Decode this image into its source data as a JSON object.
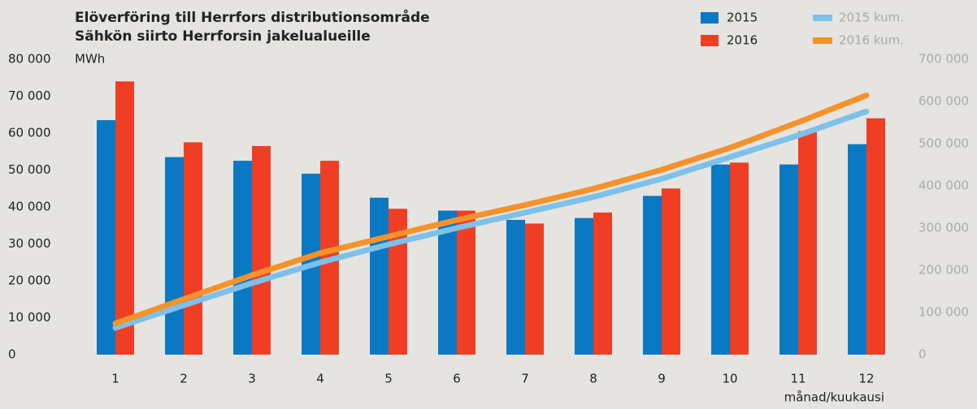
{
  "chart_data": {
    "type": "bar",
    "title": "Elöverföring till Herrfors distributionsområde",
    "subtitle": "Sähkön siirto Herrforsin jakelualueille",
    "y_label": "MWh",
    "x_label": "månad/kuukausi",
    "categories": [
      "1",
      "2",
      "3",
      "4",
      "5",
      "6",
      "7",
      "8",
      "9",
      "10",
      "11",
      "12"
    ],
    "series": [
      {
        "name": "2015",
        "color": "#0b78c3",
        "values": [
          63500,
          53500,
          52500,
          49000,
          42500,
          39000,
          36500,
          37000,
          43000,
          51500,
          51500,
          57000
        ]
      },
      {
        "name": "2016",
        "color": "#ef3e24",
        "values": [
          74000,
          57500,
          56500,
          52500,
          39500,
          39000,
          35500,
          38500,
          45000,
          52000,
          60500,
          64000
        ]
      },
      {
        "name": "2015 kum.",
        "color": "#7dc1ea",
        "axis": "y2",
        "type": "line",
        "values": [
          63500,
          117000,
          169500,
          218500,
          261000,
          300000,
          336500,
          373500,
          416500,
          468000,
          519500,
          576500
        ]
      },
      {
        "name": "2016 kum.",
        "color": "#f5922b",
        "axis": "y2",
        "type": "line",
        "values": [
          74000,
          131500,
          188000,
          240500,
          280000,
          319000,
          354500,
          393000,
          438000,
          490000,
          550500,
          614500
        ]
      }
    ],
    "ylim": [
      0,
      80000
    ],
    "yticks": [
      {
        "value": 0,
        "label": "0"
      },
      {
        "value": 10000,
        "label": "10 000"
      },
      {
        "value": 20000,
        "label": "20 000"
      },
      {
        "value": 30000,
        "label": "30 000"
      },
      {
        "value": 40000,
        "label": "40 000"
      },
      {
        "value": 50000,
        "label": "50 000"
      },
      {
        "value": 60000,
        "label": "60 000"
      },
      {
        "value": 70000,
        "label": "70 000"
      },
      {
        "value": 80000,
        "label": "80 000"
      }
    ],
    "y2lim": [
      0,
      700000
    ],
    "y2ticks": [
      {
        "value": 0,
        "label": "0"
      },
      {
        "value": 100000,
        "label": "100 000"
      },
      {
        "value": 200000,
        "label": "200 000"
      },
      {
        "value": 300000,
        "label": "300 000"
      },
      {
        "value": 400000,
        "label": "400 000"
      },
      {
        "value": 500000,
        "label": "500 000"
      },
      {
        "value": 600000,
        "label": "600 000"
      },
      {
        "value": 700000,
        "label": "700 000"
      }
    ],
    "grid": false
  }
}
